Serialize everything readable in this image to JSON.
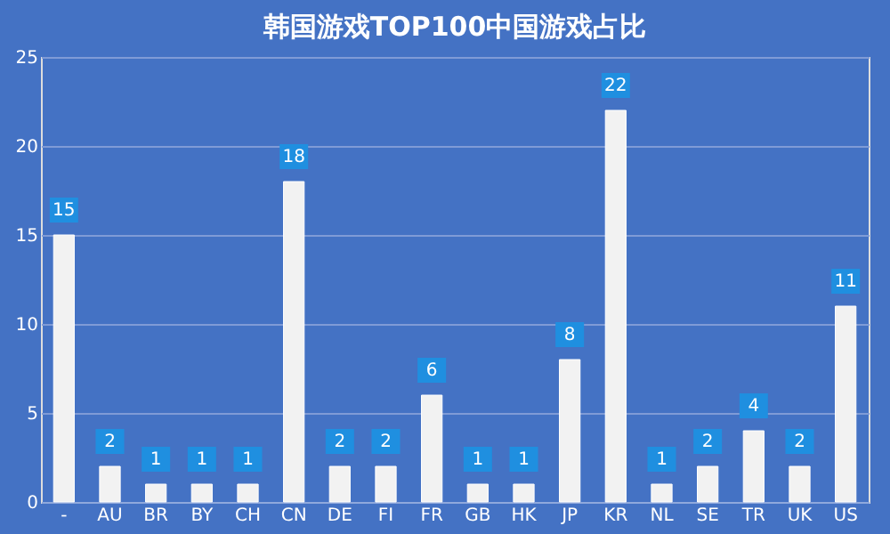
{
  "chart_data": {
    "type": "bar",
    "title": "韩国游戏TOP100中国游戏占比",
    "categories": [
      "-",
      "AU",
      "BR",
      "BY",
      "CH",
      "CN",
      "DE",
      "FI",
      "FR",
      "GB",
      "HK",
      "JP",
      "KR",
      "NL",
      "SE",
      "TR",
      "UK",
      "US"
    ],
    "values": [
      15,
      2,
      1,
      1,
      1,
      18,
      2,
      2,
      6,
      1,
      1,
      8,
      22,
      1,
      2,
      4,
      2,
      11
    ],
    "color": "#f2f2f2",
    "ylim": [
      0,
      25
    ],
    "yticks": [
      0,
      5,
      10,
      15,
      20,
      25
    ],
    "grid": "y",
    "data_labels": true
  }
}
